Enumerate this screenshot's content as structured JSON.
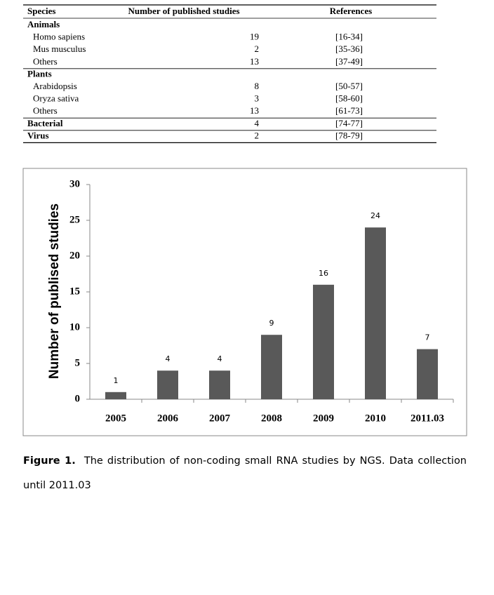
{
  "table": {
    "columns": [
      "Species",
      "Number of published studies",
      "References"
    ],
    "sections": [
      {
        "title": "Animals",
        "rows": [
          [
            "Homo sapiens",
            19,
            "[16-34]"
          ],
          [
            "Mus musculus",
            2,
            "[35-36]"
          ],
          [
            "Others",
            13,
            "[37-49]"
          ]
        ]
      },
      {
        "title": "Plants",
        "rows": [
          [
            "Arabidopsis",
            8,
            "[50-57]"
          ],
          [
            "Oryza sativa",
            3,
            "[58-60]"
          ],
          [
            "Others",
            13,
            "[61-73]"
          ]
        ]
      },
      {
        "title": "Bacterial",
        "count": 4,
        "ref": "[74-77]"
      },
      {
        "title": "Virus",
        "count": 2,
        "ref": "[78-79]"
      }
    ]
  },
  "chart_data": {
    "type": "bar",
    "ylabel": "Number of publised studies",
    "categories": [
      "2005",
      "2006",
      "2007",
      "2008",
      "2009",
      "2010",
      "2011.03"
    ],
    "values": [
      1,
      4,
      4,
      9,
      16,
      24,
      7
    ],
    "color": "#595959",
    "ylim": [
      0,
      30
    ],
    "yticks": [
      0,
      5,
      10,
      15,
      20,
      25,
      30
    ]
  },
  "caption": {
    "label": "Figure 1.",
    "text": "The distribution of non-coding small RNA studies by NGS. Data collection until 2011.03"
  }
}
